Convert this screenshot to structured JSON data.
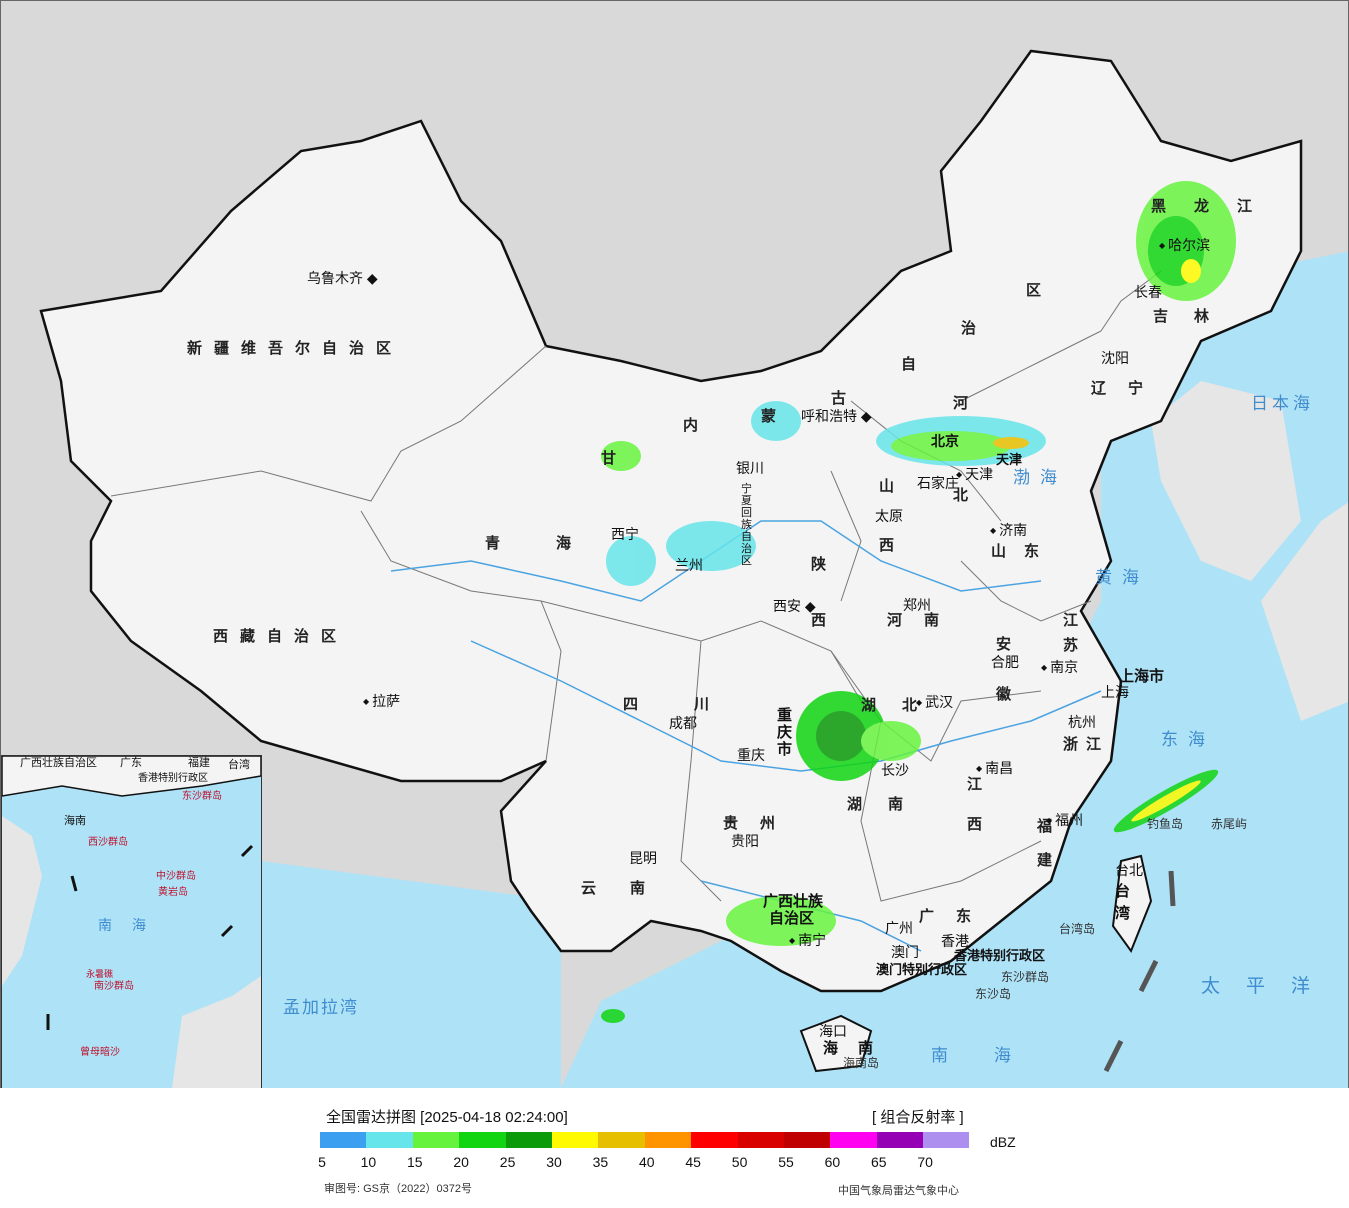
{
  "map": {
    "colors": {
      "background": "#d9d9d9",
      "land": "#f4f4f4",
      "sea": "#aee2f7",
      "border": "#111111",
      "province_border": "#777777",
      "river": "#4aa3e0"
    },
    "provinces": {
      "xinjiang": "新疆维吾尔自治区",
      "xizang": "西藏自治区",
      "qinghai": "青海",
      "gansu": "甘",
      "neimenggu_1": "内",
      "neimenggu_2": "蒙",
      "neimenggu_3": "古",
      "neimenggu_4": "自",
      "neimenggu_5": "治",
      "neimenggu_6": "区",
      "heilongjiang": "黑龙江",
      "jilin": "吉林",
      "liaoning": "辽宁",
      "hebei_1": "河",
      "hebei_2": "北",
      "shanxi_1": "山",
      "shanxi_2": "西",
      "shandong": "山东",
      "henan": "河南",
      "shaanxi_1": "陕",
      "shaanxi_2": "西",
      "ningxia": "宁夏回族自治区",
      "sichuan": "四川",
      "chongqing": "重庆市",
      "hubei": "湖北",
      "hunan": "湖南",
      "anhui_1": "安",
      "anhui_2": "徽",
      "jiangsu_1": "江",
      "jiangsu_2": "苏",
      "shanghai": "上海市",
      "zhejiang": "浙江",
      "jiangxi_1": "江",
      "jiangxi_2": "西",
      "fujian_1": "福",
      "fujian_2": "建",
      "guizhou": "贵州",
      "yunnan": "云南",
      "guangxi_1": "广西壮族",
      "guangxi_2": "自治区",
      "guangdong": "广东",
      "hainan": "海南",
      "taiwan": "台湾",
      "tianjin": "天津",
      "hongkong": "香港特别行政区",
      "macau": "澳门特别行政区"
    },
    "cities": {
      "urumqi": "乌鲁木齐",
      "lhasa": "拉萨",
      "xining": "西宁",
      "lanzhou": "兰州",
      "yinchuan": "银川",
      "hohhot": "呼和浩特",
      "beijing": "北京",
      "tianjin": "天津",
      "shijiazhuang": "石家庄",
      "taiyuan": "太原",
      "jinan": "济南",
      "zhengzhou": "郑州",
      "xian": "西安",
      "shenyang": "沈阳",
      "changchun": "长春",
      "harbin": "哈尔滨",
      "hefei": "合肥",
      "nanjing": "南京",
      "shanghai": "上海",
      "hangzhou": "杭州",
      "wuhan": "武汉",
      "chengdu": "成都",
      "chongqing": "重庆",
      "changsha": "长沙",
      "nanchang": "南昌",
      "fuzhou": "福州",
      "guiyang": "贵阳",
      "kunming": "昆明",
      "nanning": "南宁",
      "guangzhou": "广州",
      "hongkong": "香港",
      "macau": "澳门",
      "haikou": "海口",
      "taipei": "台北"
    },
    "seas": {
      "bohai": "渤海",
      "yellow_sea": "黄海",
      "east_sea": "东海",
      "south_sea": "南海",
      "sea_of_japan": "日本海",
      "pacific": "太平洋",
      "bay_of_bengal": "孟加拉湾"
    },
    "islands": {
      "diaoyu": "钓鱼岛",
      "chiwei": "赤尾屿",
      "taiwan_island": "台湾岛",
      "hainan_island": "海南岛",
      "dongsha_islands": "东沙群岛",
      "dongsha_island": "东沙岛"
    }
  },
  "inset": {
    "labels": {
      "guangxi": "广西壮族自治区",
      "guangdong": "广东",
      "fujian": "福建",
      "taiwan": "台湾",
      "hainan": "海南",
      "hk_macau": "香港特别行政区",
      "dongsha": "东沙群岛",
      "xisha": "西沙群岛",
      "zhongsha": "中沙群岛",
      "huangyan": "黄岩岛",
      "nansha": "南沙群岛",
      "south_sea": "南海",
      "zengmu": "曾母暗沙",
      "yongshu": "永暑礁"
    }
  },
  "legend": {
    "title": "全国雷达拼图 [2025-04-18 02:24:00]",
    "product": "[ 组合反射率 ]",
    "unit": "dBZ",
    "colors": [
      "#3d9ff0",
      "#66e5ea",
      "#66f33e",
      "#12d512",
      "#0a9a0a",
      "#fffa00",
      "#e6c000",
      "#ff9400",
      "#ff0000",
      "#d90000",
      "#c00000",
      "#ff00f0",
      "#9600b4",
      "#ad8ff0"
    ],
    "ticks": [
      "5",
      "10",
      "15",
      "20",
      "25",
      "30",
      "35",
      "40",
      "45",
      "50",
      "55",
      "60",
      "65",
      "70"
    ],
    "review_no": "审图号: GS京（2022）0372号",
    "source": "中国气象局雷达气象中心"
  }
}
